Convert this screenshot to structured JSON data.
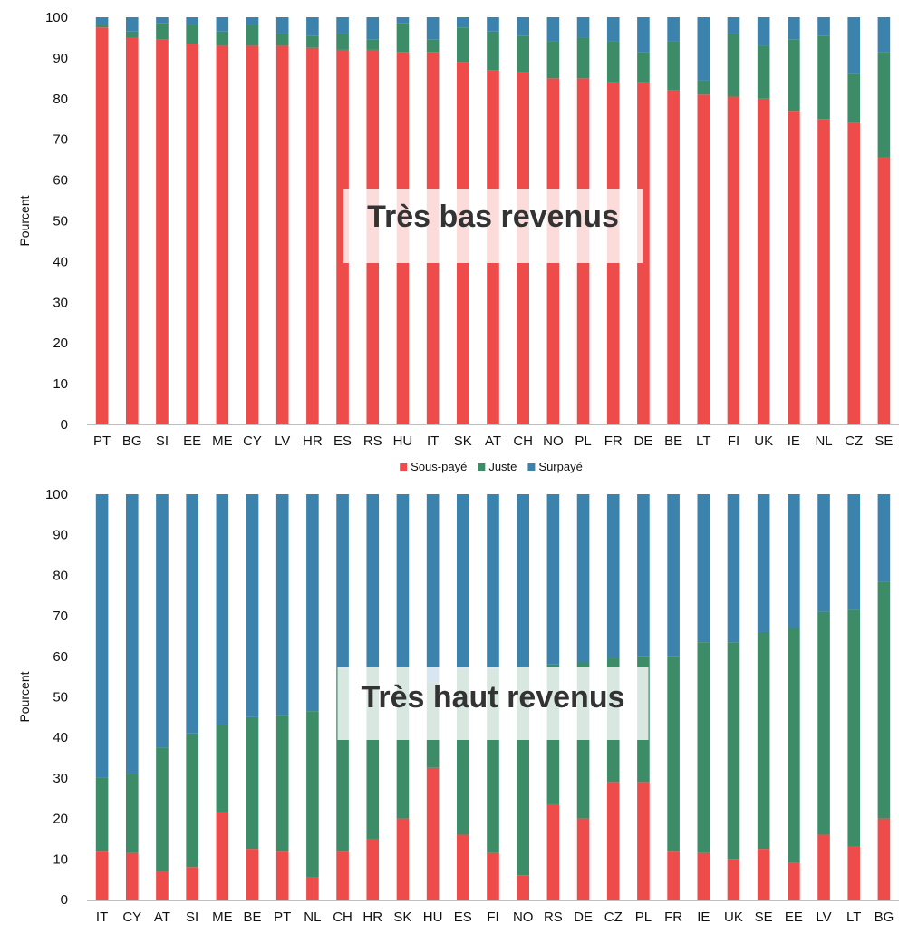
{
  "colors": {
    "underpaid": "#ee4b4b",
    "fair": "#3c8c68",
    "overpaid": "#3b82ad"
  },
  "legend": {
    "items": [
      "Sous-payé",
      "Juste",
      "Surpayé"
    ],
    "placement": "between-panels-center"
  },
  "chart_data": [
    {
      "type": "bar",
      "stacked": true,
      "annotation": "Très bas revenus",
      "ylabel": "Pourcent",
      "ylim": [
        0,
        100
      ],
      "yticks": [
        0,
        10,
        20,
        30,
        40,
        50,
        60,
        70,
        80,
        90,
        100
      ],
      "grid": false,
      "categories": [
        "PT",
        "BG",
        "SI",
        "EE",
        "ME",
        "CY",
        "LV",
        "HR",
        "ES",
        "RS",
        "HU",
        "IT",
        "SK",
        "AT",
        "CH",
        "NO",
        "PL",
        "FR",
        "DE",
        "BE",
        "LT",
        "FI",
        "UK",
        "IE",
        "NL",
        "CZ",
        "SE"
      ],
      "series": [
        {
          "name": "Sous-payé",
          "values": [
            97.5,
            95,
            94.5,
            93.5,
            93,
            93,
            93,
            92.5,
            92,
            92,
            91.5,
            91.5,
            89,
            87,
            86.5,
            85,
            85,
            84,
            84,
            82,
            81,
            80.5,
            80,
            77,
            75,
            74,
            65.5
          ]
        },
        {
          "name": "Juste",
          "values": [
            0.5,
            1.5,
            4,
            4.5,
            3.5,
            5,
            3,
            3,
            4,
            2.5,
            7,
            3,
            8.5,
            9.5,
            9,
            9,
            10,
            10,
            7.5,
            12,
            3.5,
            15.5,
            13,
            17.5,
            20.5,
            12,
            26
          ]
        },
        {
          "name": "Surpayé",
          "values": [
            2,
            3.5,
            1.5,
            2,
            3.5,
            2,
            4,
            4.5,
            4,
            5.5,
            1.5,
            5.5,
            2.5,
            3.5,
            4.5,
            6,
            5,
            6,
            8.5,
            6,
            15.5,
            4,
            7,
            5.5,
            4.5,
            14,
            8.5
          ]
        }
      ]
    },
    {
      "type": "bar",
      "stacked": true,
      "annotation": "Très haut revenus",
      "ylabel": "Pourcent",
      "ylim": [
        0,
        100
      ],
      "yticks": [
        0,
        10,
        20,
        30,
        40,
        50,
        60,
        70,
        80,
        90,
        100
      ],
      "grid": false,
      "categories": [
        "IT",
        "CY",
        "AT",
        "SI",
        "ME",
        "BE",
        "PT",
        "NL",
        "CH",
        "HR",
        "SK",
        "HU",
        "ES",
        "FI",
        "NO",
        "RS",
        "DE",
        "CZ",
        "PL",
        "FR",
        "IE",
        "UK",
        "SE",
        "EE",
        "LV",
        "LT",
        "BG"
      ],
      "series": [
        {
          "name": "Sous-payé",
          "values": [
            12,
            11.5,
            7,
            8,
            21.5,
            12.5,
            12,
            5.5,
            12,
            15,
            20,
            32.5,
            16,
            11.5,
            6,
            23.5,
            20,
            29,
            29,
            12,
            11.5,
            10,
            12.5,
            9,
            16,
            13,
            20
          ]
        },
        {
          "name": "Juste",
          "values": [
            18,
            19.5,
            30.5,
            33,
            21.5,
            32.5,
            33.5,
            41,
            45,
            42.5,
            37.5,
            21,
            41,
            45.5,
            51.5,
            34.5,
            38.5,
            30.5,
            31,
            48,
            52,
            53.5,
            53.5,
            58,
            55,
            58.5,
            58.5
          ]
        },
        {
          "name": "Surpayé",
          "values": [
            70,
            69,
            62.5,
            59,
            57,
            55,
            54.5,
            53.5,
            43,
            42.5,
            42.5,
            46.5,
            43,
            43,
            42.5,
            42,
            41.5,
            40.5,
            40,
            40,
            36.5,
            36.5,
            34,
            33,
            29,
            28.5,
            21.5
          ]
        }
      ]
    }
  ]
}
